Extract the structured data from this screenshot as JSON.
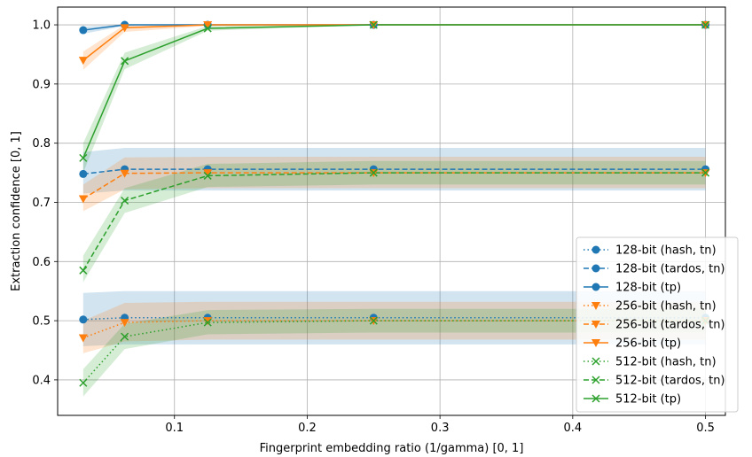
{
  "chart_data": {
    "type": "line",
    "xlabel": "Fingerprint embedding ratio (1/gamma) [0, 1]",
    "ylabel": "Extraction confidence [0, 1]",
    "xlim": [
      0.012,
      0.515
    ],
    "ylim": [
      0.34,
      1.03
    ],
    "xticks": [
      0.1,
      0.2,
      0.3,
      0.4,
      0.5
    ],
    "xtick_labels": [
      "0.1",
      "0.2",
      "0.3",
      "0.4",
      "0.5"
    ],
    "yticks": [
      0.4,
      0.5,
      0.6,
      0.7,
      0.8,
      0.9,
      1.0
    ],
    "ytick_labels": [
      "0.4",
      "0.5",
      "0.6",
      "0.7",
      "0.8",
      "0.9",
      "1.0"
    ],
    "grid": true,
    "legend_position": "lower-right",
    "x": [
      0.03125,
      0.0625,
      0.125,
      0.25,
      0.5
    ],
    "series": [
      {
        "name": "128-bit (hash, tn)",
        "color": "#1f77b4",
        "marker": "circle",
        "linestyle": "dotted",
        "values": [
          0.502,
          0.505,
          0.505,
          0.505,
          0.505
        ],
        "band": [
          [
            0.457,
            0.547
          ],
          [
            0.46,
            0.55
          ],
          [
            0.46,
            0.55
          ],
          [
            0.46,
            0.55
          ],
          [
            0.46,
            0.55
          ]
        ]
      },
      {
        "name": "128-bit (tardos, tn)",
        "color": "#1f77b4",
        "marker": "circle",
        "linestyle": "dashed",
        "values": [
          0.748,
          0.756,
          0.756,
          0.756,
          0.756
        ],
        "band": [
          [
            0.715,
            0.785
          ],
          [
            0.72,
            0.792
          ],
          [
            0.72,
            0.792
          ],
          [
            0.72,
            0.792
          ],
          [
            0.72,
            0.792
          ]
        ]
      },
      {
        "name": "128-bit (tp)",
        "color": "#1f77b4",
        "marker": "circle",
        "linestyle": "solid",
        "values": [
          0.991,
          1.0,
          1.0,
          1.0,
          1.0
        ],
        "band": [
          [
            0.985,
            0.997
          ],
          [
            0.998,
            1.0
          ],
          [
            1.0,
            1.0
          ],
          [
            1.0,
            1.0
          ],
          [
            1.0,
            1.0
          ]
        ]
      },
      {
        "name": "256-bit (hash, tn)",
        "color": "#ff7f0e",
        "marker": "triangle-down",
        "linestyle": "dotted",
        "values": [
          0.471,
          0.497,
          0.5,
          0.5,
          0.5
        ],
        "band": [
          [
            0.445,
            0.5
          ],
          [
            0.465,
            0.53
          ],
          [
            0.468,
            0.532
          ],
          [
            0.468,
            0.532
          ],
          [
            0.468,
            0.532
          ]
        ]
      },
      {
        "name": "256-bit (tardos, tn)",
        "color": "#ff7f0e",
        "marker": "triangle-down",
        "linestyle": "dashed",
        "values": [
          0.706,
          0.749,
          0.75,
          0.75,
          0.75
        ],
        "band": [
          [
            0.685,
            0.73
          ],
          [
            0.722,
            0.776
          ],
          [
            0.724,
            0.777
          ],
          [
            0.724,
            0.777
          ],
          [
            0.724,
            0.777
          ]
        ]
      },
      {
        "name": "256-bit (tp)",
        "color": "#ff7f0e",
        "marker": "triangle-down",
        "linestyle": "solid",
        "values": [
          0.94,
          0.995,
          1.0,
          1.0,
          1.0
        ],
        "band": [
          [
            0.924,
            0.955
          ],
          [
            0.988,
            1.0
          ],
          [
            0.998,
            1.0
          ],
          [
            1.0,
            1.0
          ],
          [
            1.0,
            1.0
          ]
        ]
      },
      {
        "name": "512-bit (hash, tn)",
        "color": "#2ca02c",
        "marker": "x",
        "linestyle": "dotted",
        "values": [
          0.395,
          0.473,
          0.497,
          0.5,
          0.5
        ],
        "band": [
          [
            0.372,
            0.418
          ],
          [
            0.452,
            0.495
          ],
          [
            0.477,
            0.518
          ],
          [
            0.48,
            0.52
          ],
          [
            0.48,
            0.52
          ]
        ]
      },
      {
        "name": "512-bit (tardos, tn)",
        "color": "#2ca02c",
        "marker": "x",
        "linestyle": "dashed",
        "values": [
          0.585,
          0.703,
          0.745,
          0.75,
          0.75
        ],
        "band": [
          [
            0.565,
            0.61
          ],
          [
            0.682,
            0.724
          ],
          [
            0.726,
            0.765
          ],
          [
            0.73,
            0.77
          ],
          [
            0.73,
            0.77
          ]
        ]
      },
      {
        "name": "512-bit (tp)",
        "color": "#2ca02c",
        "marker": "x",
        "linestyle": "solid",
        "values": [
          0.775,
          0.939,
          0.994,
          1.0,
          1.0
        ],
        "band": [
          [
            0.75,
            0.8
          ],
          [
            0.925,
            0.953
          ],
          [
            0.99,
            0.998
          ],
          [
            1.0,
            1.0
          ],
          [
            1.0,
            1.0
          ]
        ]
      }
    ]
  }
}
